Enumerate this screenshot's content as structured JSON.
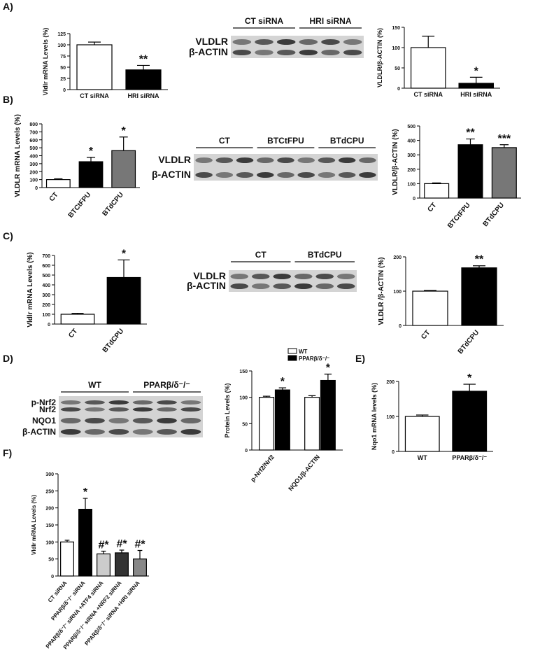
{
  "panel_labels": [
    "A)",
    "B)",
    "C)",
    "D)",
    "E)",
    "F)"
  ],
  "blots": [
    {
      "headers": [
        "CT siRNA",
        "HRI siRNA"
      ],
      "rows": [
        "VLDLR",
        "β-ACTIN"
      ]
    },
    {
      "headers": [
        "CT",
        "BTCtFPU",
        "BTdCPU"
      ],
      "rows": [
        "VLDLR",
        "β-ACTIN"
      ]
    },
    {
      "headers": [
        "CT",
        "BTdCPU"
      ],
      "rows": [
        "VLDLR",
        "β-ACTIN"
      ]
    },
    {
      "headers": [
        "WT",
        "PPARβ/δ⁻/⁻"
      ],
      "rows": [
        "p-Nrf2",
        "Nrf2",
        "NQO1",
        "β-ACTIN"
      ]
    }
  ],
  "chart_data": [
    {
      "type": "bar",
      "ylabel": "Vldlr mRNA Levels (%)",
      "categories": [
        "CT siRNA",
        "HRI siRNA"
      ],
      "values": [
        100,
        44
      ],
      "errors": [
        6,
        10
      ],
      "colors": [
        "#ffffff",
        "#000000"
      ],
      "significance": [
        null,
        "**"
      ],
      "ylim": [
        0,
        125
      ],
      "yticks": [
        0,
        25,
        50,
        75,
        100,
        125
      ]
    },
    {
      "type": "bar",
      "ylabel": "VLDLR/β-ACTIN (%)",
      "categories": [
        "CT siRNA",
        "HRI siRNA"
      ],
      "values": [
        100,
        12
      ],
      "errors": [
        28,
        15
      ],
      "colors": [
        "#ffffff",
        "#000000"
      ],
      "significance": [
        null,
        "*"
      ],
      "ylim": [
        0,
        150
      ],
      "yticks": [
        0,
        50,
        100,
        150
      ]
    },
    {
      "type": "bar",
      "ylabel": "VLDLR mRNA Levels (%)",
      "categories": [
        "CT",
        "BTCtFPU",
        "BTdCPU"
      ],
      "values": [
        100,
        325,
        465
      ],
      "errors": [
        10,
        55,
        170
      ],
      "colors": [
        "#ffffff",
        "#000000",
        "#777777"
      ],
      "significance": [
        null,
        "*",
        "*"
      ],
      "ylim": [
        0,
        800
      ],
      "yticks": [
        0,
        100,
        200,
        300,
        400,
        500,
        600,
        700,
        800
      ]
    },
    {
      "type": "bar",
      "ylabel": "VLDLR/β-ACTIN (%)",
      "categories": [
        "CT",
        "BTCtFPU",
        "BTdCPU"
      ],
      "values": [
        100,
        370,
        350
      ],
      "errors": [
        5,
        40,
        20
      ],
      "colors": [
        "#ffffff",
        "#000000",
        "#777777"
      ],
      "significance": [
        null,
        "**",
        "***"
      ],
      "ylim": [
        0,
        500
      ],
      "yticks": [
        0,
        100,
        200,
        300,
        400,
        500
      ]
    },
    {
      "type": "bar",
      "ylabel": "Vldlr mRNA Levels (%)",
      "categories": [
        "CT",
        "BTdCPU"
      ],
      "values": [
        100,
        475
      ],
      "errors": [
        10,
        180
      ],
      "colors": [
        "#ffffff",
        "#000000"
      ],
      "significance": [
        null,
        "*"
      ],
      "ylim": [
        0,
        700
      ],
      "yticks": [
        0,
        100,
        200,
        300,
        400,
        500,
        600,
        700
      ]
    },
    {
      "type": "bar",
      "ylabel": "VLDLR /β-ACTIN (%)",
      "categories": [
        "CT",
        "BTdCPU"
      ],
      "values": [
        100,
        168
      ],
      "errors": [
        2,
        6
      ],
      "colors": [
        "#ffffff",
        "#000000"
      ],
      "significance": [
        null,
        "**"
      ],
      "ylim": [
        0,
        200
      ],
      "yticks": [
        0,
        100,
        200
      ]
    },
    {
      "type": "grouped_bar",
      "ylabel": "Protein Levels (%)",
      "categories": [
        "p-Nrf2/Nrf2",
        "NQO1/β-ACTIN"
      ],
      "series": [
        {
          "name": "WT",
          "color": "#ffffff",
          "values": [
            100,
            100
          ],
          "errors": [
            2,
            3
          ]
        },
        {
          "name": "PPARβ/δ⁻/⁻",
          "color": "#000000",
          "values": [
            114,
            132
          ],
          "errors": [
            4,
            12
          ],
          "significance": [
            "*",
            "*"
          ]
        }
      ],
      "ylim": [
        0,
        150
      ],
      "yticks": [
        0,
        50,
        100,
        150
      ]
    },
    {
      "type": "bar",
      "ylabel": "Nqo1 mRNA levels (%)",
      "categories": [
        "WT",
        "PPARβ/δ⁻/⁻"
      ],
      "values": [
        100,
        172
      ],
      "errors": [
        4,
        20
      ],
      "colors": [
        "#ffffff",
        "#000000"
      ],
      "significance": [
        null,
        "*"
      ],
      "ylim": [
        0,
        200
      ],
      "yticks": [
        0,
        100,
        200
      ]
    },
    {
      "type": "bar",
      "ylabel": "Vldlr mRNA Levels (%)",
      "categories": [
        "CT siRNA",
        "PPARβ/δ⁻/⁻ siRNA",
        "PPARβ/δ⁻/⁻ siRNA +ATF4 siRNA",
        "PPARβ/δ⁻/⁻ siRNA +NRF2 siRNA",
        "PPARβ/δ⁻/⁻ siRNA +HRI siRNA"
      ],
      "values": [
        100,
        196,
        65,
        68,
        50
      ],
      "errors": [
        5,
        32,
        8,
        8,
        25
      ],
      "colors": [
        "#ffffff",
        "#000000",
        "#cccccc",
        "#333333",
        "#888888"
      ],
      "significance": [
        null,
        "*",
        "#*",
        "#*",
        "#*"
      ],
      "ylim": [
        0,
        300
      ],
      "yticks": [
        0,
        50,
        100,
        150,
        200,
        250,
        300
      ]
    }
  ]
}
